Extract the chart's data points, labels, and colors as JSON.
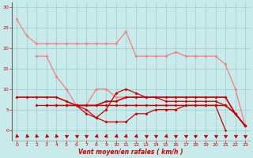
{
  "x": [
    0,
    1,
    2,
    3,
    4,
    5,
    6,
    7,
    8,
    9,
    10,
    11,
    12,
    13,
    14,
    15,
    16,
    17,
    18,
    19,
    20,
    21,
    22,
    23
  ],
  "lines": [
    {
      "y": [
        27,
        23,
        21,
        21,
        21,
        21,
        21,
        21,
        21,
        21,
        21,
        24,
        18,
        18,
        18,
        18,
        19,
        18,
        18,
        18,
        18,
        16,
        10,
        1
      ],
      "color": "#f08080",
      "lw": 0.9,
      "ms": 2.0
    },
    {
      "y": [
        null,
        null,
        18,
        18,
        13,
        10,
        6,
        6,
        10,
        10,
        8,
        8,
        8,
        8,
        8,
        8,
        8,
        8,
        8,
        8,
        8,
        8,
        4,
        1
      ],
      "color": "#f08080",
      "lw": 0.9,
      "ms": 2.0
    },
    {
      "y": [
        8,
        8,
        8,
        8,
        8,
        7,
        6,
        6,
        6,
        7,
        7,
        8,
        8,
        8,
        8,
        8,
        8,
        8,
        8,
        8,
        8,
        8,
        4,
        1
      ],
      "color": "#cc0000",
      "lw": 1.2,
      "ms": 2.0
    },
    {
      "y": [
        null,
        null,
        null,
        6,
        6,
        6,
        6,
        5,
        3,
        2,
        2,
        2,
        4,
        4,
        5,
        5,
        5,
        6,
        6,
        6,
        6,
        6,
        4,
        1
      ],
      "color": "#cc0000",
      "lw": 0.9,
      "ms": 2.0
    },
    {
      "y": [
        null,
        null,
        6,
        6,
        6,
        6,
        6,
        4,
        3,
        5,
        9,
        10,
        9,
        8,
        8,
        7,
        7,
        7,
        7,
        7,
        7,
        6,
        4,
        1
      ],
      "color": "#cc0000",
      "lw": 0.9,
      "ms": 2.0
    },
    {
      "y": [
        null,
        null,
        null,
        null,
        null,
        6,
        6,
        6,
        6,
        6,
        6,
        6,
        6,
        6,
        6,
        6,
        6,
        6,
        6,
        6,
        6,
        0,
        null,
        null
      ],
      "color": "#cc0000",
      "lw": 0.9,
      "ms": 1.8
    },
    {
      "y": [
        null,
        null,
        null,
        null,
        null,
        null,
        6,
        6,
        6,
        6,
        6,
        6,
        6,
        6,
        6,
        6,
        6,
        6,
        6,
        6,
        6,
        6,
        4,
        1
      ],
      "color": "#cc0000",
      "lw": 0.9,
      "ms": 1.8
    }
  ],
  "xlabel": "Vent moyen/en rafales ( km/h )",
  "ylim": [
    0,
    31
  ],
  "xlim": [
    -0.5,
    23.5
  ],
  "yticks": [
    0,
    5,
    10,
    15,
    20,
    25,
    30
  ],
  "xticks": [
    0,
    1,
    2,
    3,
    4,
    5,
    6,
    7,
    8,
    9,
    10,
    11,
    12,
    13,
    14,
    15,
    16,
    17,
    18,
    19,
    20,
    21,
    22,
    23
  ],
  "bg_color": "#c8eaea",
  "grid_color": "#99cccc",
  "tick_color": "#cc0000",
  "label_color": "#cc0000",
  "arrow_color": "#cc0000"
}
